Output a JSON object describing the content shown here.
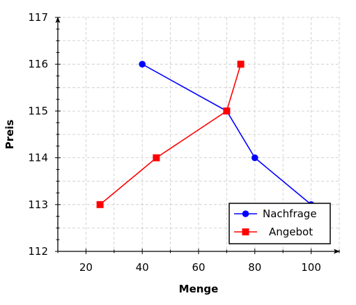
{
  "chart_data": {
    "type": "line",
    "xlabel": "Menge",
    "ylabel": "Preis",
    "xlim": [
      10,
      110
    ],
    "ylim": [
      112,
      117
    ],
    "x_ticks": [
      20,
      40,
      60,
      80,
      100
    ],
    "y_ticks": [
      112,
      113,
      114,
      115,
      116,
      117
    ],
    "grid": true,
    "legend_position": "bottom-right",
    "series": [
      {
        "name": "Nachfrage",
        "color": "#0000ff",
        "marker": "circle",
        "points": [
          [
            40,
            116
          ],
          [
            70,
            115
          ],
          [
            80,
            114
          ],
          [
            100,
            113
          ]
        ]
      },
      {
        "name": "Angebot",
        "color": "#ff0000",
        "marker": "square",
        "points": [
          [
            25,
            113
          ],
          [
            45,
            114
          ],
          [
            70,
            115
          ],
          [
            75,
            116
          ]
        ]
      }
    ]
  }
}
